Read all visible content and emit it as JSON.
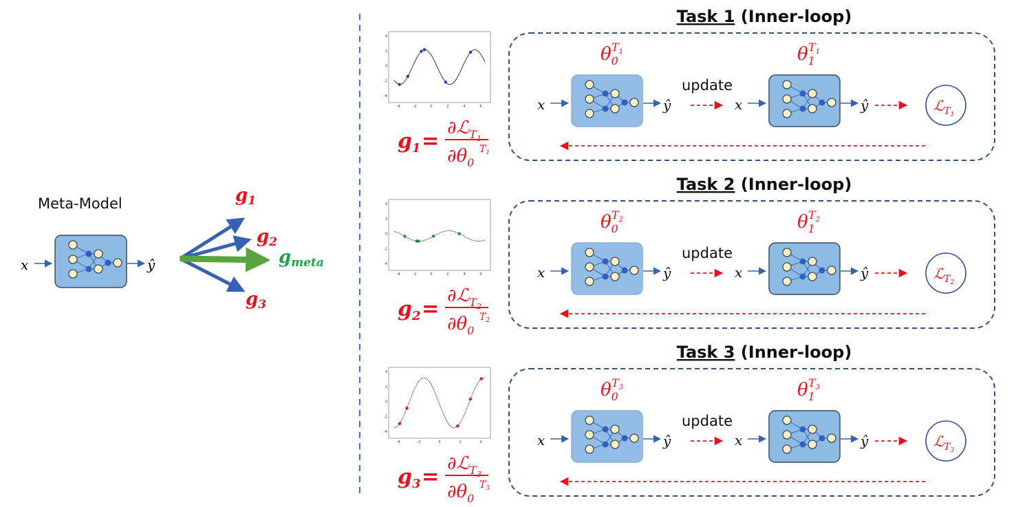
{
  "meta": {
    "label": "Meta-Model",
    "x": "x",
    "yhat": "ŷ",
    "gradients": [
      {
        "base": "g",
        "sub": "1"
      },
      {
        "base": "g",
        "sub": "2"
      },
      {
        "base": "g",
        "sub": "3"
      }
    ],
    "meta_gradient": {
      "base": "g",
      "sub": "meta"
    }
  },
  "common": {
    "theta": "θ",
    "task_sym": "T",
    "update": "update",
    "loss_sym": "ℒ",
    "partial": "∂",
    "equals": "=",
    "x": "x",
    "yhat": "ŷ"
  },
  "tasks": [
    {
      "title_main": "Task 1",
      "title_rest": "(Inner-loop)",
      "g_sub": "1",
      "t_sub": "1",
      "theta0_sub": "0",
      "theta1_sub": "1",
      "curve_color": "#1f3fbf",
      "plot_ticks_y": [
        "4",
        "2",
        "0",
        "-2",
        "-4"
      ],
      "plot_ticks_x": [
        "-4",
        "-2",
        "0",
        "2",
        "4",
        "6"
      ]
    },
    {
      "title_main": "Task 2",
      "title_rest": "(Inner-loop)",
      "g_sub": "2",
      "t_sub": "2",
      "theta0_sub": "0",
      "theta1_sub": "1",
      "curve_color": "#1e8c2e",
      "plot_ticks_y": [
        "4",
        "2",
        "0",
        "-2",
        "-4"
      ],
      "plot_ticks_x": [
        "-4",
        "-2",
        "0",
        "2",
        "4",
        "6"
      ]
    },
    {
      "title_main": "Task 3",
      "title_rest": "(Inner-loop)",
      "g_sub": "3",
      "t_sub": "3",
      "theta0_sub": "0",
      "theta1_sub": "1",
      "curve_color": "#e8121f",
      "plot_ticks_y": [
        "4",
        "2",
        "0",
        "-2",
        "-4"
      ],
      "plot_ticks_x": [
        "-4",
        "-2",
        "0",
        "2",
        "4"
      ]
    }
  ],
  "colors": {
    "gradient_red": "#e8121f",
    "meta_green": "#1ea34a",
    "arrow_blue": "#3562b3",
    "box_dash": "#2f4f7f",
    "divider": "#3f6fc6"
  }
}
